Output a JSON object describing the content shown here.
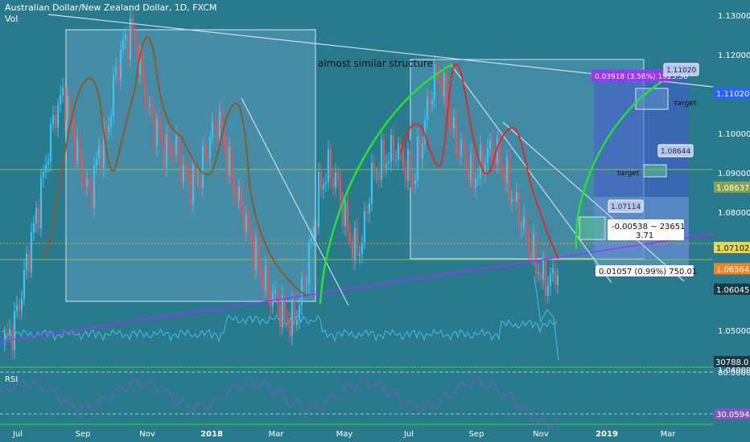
{
  "chart_data": {
    "type": "candlestick",
    "title": "Australian Dollar/New Zealand Dollar, 1D, FXCM",
    "volume_label": "Vol",
    "rsi_label": "RSI",
    "annotation_text": "almost similar structure",
    "x_tick_labels": [
      "Jul",
      "Sep",
      "Nov",
      "2018",
      "Mar",
      "May",
      "Jul",
      "Sep",
      "Nov",
      "2019",
      "Mar"
    ],
    "y_tick_labels": [
      "1.13000",
      "1.12000",
      "1.10000",
      "1.09000",
      "1.08000",
      "1.06000",
      "1.05000",
      "1.04000"
    ],
    "y_ticks": [
      1.13,
      1.12,
      1.1,
      1.09,
      1.08,
      1.06,
      1.05,
      1.04
    ],
    "ylim": [
      1.035,
      1.133
    ],
    "price_badges": [
      {
        "value": 1.1102,
        "text": "1.11020",
        "color": "#2962ff"
      },
      {
        "value": 1.08637,
        "text": "1.08637",
        "color": "#8aa04a"
      },
      {
        "value": 1.07102,
        "text": "1.07102",
        "color": "#e6d84a"
      },
      {
        "value": 1.06564,
        "text": "1.06564",
        "color": "#f5841f"
      },
      {
        "value": 1.06045,
        "text": "1.06045",
        "color": "#1a3a44"
      }
    ],
    "volume_badge": "30788.0",
    "rsi_ticks": [
      80,
      40
    ],
    "rsi_tick_labels": [
      "80.0000",
      "40.0000"
    ],
    "rsi_badge": "30.0594",
    "measure_labels": [
      {
        "text": "0.03918 (3.56%) 1925.56"
      },
      {
        "text": "-0.00538 ~ 23651"
      },
      {
        "text": "3.71"
      },
      {
        "text": "0.01057 (0.99%) 750.01"
      }
    ],
    "target_labels": [
      "target",
      "target"
    ],
    "target_boxes": [
      "1.11020",
      "1.08644",
      "1.07114"
    ],
    "trend_closes": [
      1.047,
      1.0505,
      1.06,
      1.072,
      1.082,
      1.095,
      1.106,
      1.11,
      1.1,
      1.09,
      1.084,
      1.095,
      1.1,
      1.115,
      1.123,
      1.126,
      1.115,
      1.105,
      1.1,
      1.095,
      1.097,
      1.09,
      1.087,
      1.09,
      1.098,
      1.104,
      1.095,
      1.086,
      1.08,
      1.072,
      1.065,
      1.06,
      1.057,
      1.053,
      1.052,
      1.06,
      1.072,
      1.086,
      1.091,
      1.088,
      1.078,
      1.07,
      1.072,
      1.088,
      1.092,
      1.094,
      1.096,
      1.092,
      1.088,
      1.098,
      1.11,
      1.116,
      1.106,
      1.098,
      1.094,
      1.088,
      1.092,
      1.096,
      1.094,
      1.088,
      1.082,
      1.076,
      1.07,
      1.064,
      1.062,
      1.0656
    ],
    "series": [
      {
        "name": "AUDNZD",
        "type": "candlestick"
      },
      {
        "name": "Vol",
        "type": "histogram"
      },
      {
        "name": "RSI",
        "type": "line"
      }
    ]
  },
  "colors": {
    "background": "#2a7a8e",
    "up_candle": "#3cc3f0",
    "down_candle": "#e05858",
    "volume": "#43b6d8",
    "rsi_line": "#7e57c2",
    "trend_purple": "#9c33ff",
    "arc_green": "#27e32f",
    "hline_green": "#8fbf4a",
    "zone_blue": "#5a6ed0"
  }
}
